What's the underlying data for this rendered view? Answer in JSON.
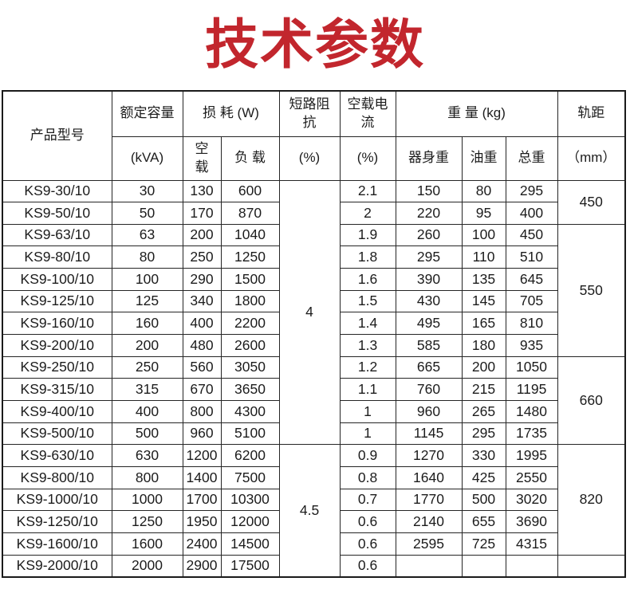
{
  "title": "技术参数",
  "theme": {
    "title_color": "#c2262d",
    "border_color": "#252525",
    "text_color": "#1c1c1c",
    "background": "#ffffff"
  },
  "table": {
    "header": {
      "product_model": "产品型号",
      "rated_capacity": "额定容量",
      "rated_capacity_unit": "(kVA)",
      "loss": "损 耗 (W)",
      "no_load_loss": "空\n载",
      "on_load_loss": "负 载",
      "impedance": "短路阻\n抗",
      "impedance_unit": "(%)",
      "no_load_current": "空载电\n流",
      "no_load_current_unit": "(%)",
      "weight": "重 量 (kg)",
      "body_weight": "器身重",
      "oil_weight": "油重",
      "total_weight": "总重",
      "rail_gauge": "轨距",
      "rail_gauge_unit": "（mm）"
    },
    "rows": [
      {
        "model": "KS9-30/10",
        "kva": "30",
        "no_load_loss": "130",
        "load_loss": "600",
        "no_load_current": "2.1",
        "body_weight": "150",
        "oil_weight": "80",
        "total_weight": "295"
      },
      {
        "model": "KS9-50/10",
        "kva": "50",
        "no_load_loss": "170",
        "load_loss": "870",
        "no_load_current": "2",
        "body_weight": "220",
        "oil_weight": "95",
        "total_weight": "400"
      },
      {
        "model": "KS9-63/10",
        "kva": "63",
        "no_load_loss": "200",
        "load_loss": "1040",
        "no_load_current": "1.9",
        "body_weight": "260",
        "oil_weight": "100",
        "total_weight": "450"
      },
      {
        "model": "KS9-80/10",
        "kva": "80",
        "no_load_loss": "250",
        "load_loss": "1250",
        "no_load_current": "1.8",
        "body_weight": "295",
        "oil_weight": "110",
        "total_weight": "510"
      },
      {
        "model": "KS9-100/10",
        "kva": "100",
        "no_load_loss": "290",
        "load_loss": "1500",
        "no_load_current": "1.6",
        "body_weight": "390",
        "oil_weight": "135",
        "total_weight": "645"
      },
      {
        "model": "KS9-125/10",
        "kva": "125",
        "no_load_loss": "340",
        "load_loss": "1800",
        "no_load_current": "1.5",
        "body_weight": "430",
        "oil_weight": "145",
        "total_weight": "705"
      },
      {
        "model": "KS9-160/10",
        "kva": "160",
        "no_load_loss": "400",
        "load_loss": "2200",
        "no_load_current": "1.4",
        "body_weight": "495",
        "oil_weight": "165",
        "total_weight": "810"
      },
      {
        "model": "KS9-200/10",
        "kva": "200",
        "no_load_loss": "480",
        "load_loss": "2600",
        "no_load_current": "1.3",
        "body_weight": "585",
        "oil_weight": "180",
        "total_weight": "935"
      },
      {
        "model": "KS9-250/10",
        "kva": "250",
        "no_load_loss": "560",
        "load_loss": "3050",
        "no_load_current": "1.2",
        "body_weight": "665",
        "oil_weight": "200",
        "total_weight": "1050"
      },
      {
        "model": "KS9-315/10",
        "kva": "315",
        "no_load_loss": "670",
        "load_loss": "3650",
        "no_load_current": "1.1",
        "body_weight": "760",
        "oil_weight": "215",
        "total_weight": "1195"
      },
      {
        "model": "KS9-400/10",
        "kva": "400",
        "no_load_loss": "800",
        "load_loss": "4300",
        "no_load_current": "1",
        "body_weight": "960",
        "oil_weight": "265",
        "total_weight": "1480"
      },
      {
        "model": "KS9-500/10",
        "kva": "500",
        "no_load_loss": "960",
        "load_loss": "5100",
        "no_load_current": "1",
        "body_weight": "1145",
        "oil_weight": "295",
        "total_weight": "1735"
      },
      {
        "model": "KS9-630/10",
        "kva": "630",
        "no_load_loss": "1200",
        "load_loss": "6200",
        "no_load_current": "0.9",
        "body_weight": "1270",
        "oil_weight": "330",
        "total_weight": "1995"
      },
      {
        "model": "KS9-800/10",
        "kva": "800",
        "no_load_loss": "1400",
        "load_loss": "7500",
        "no_load_current": "0.8",
        "body_weight": "1640",
        "oil_weight": "425",
        "total_weight": "2550"
      },
      {
        "model": "KS9-1000/10",
        "kva": "1000",
        "no_load_loss": "1700",
        "load_loss": "10300",
        "no_load_current": "0.7",
        "body_weight": "1770",
        "oil_weight": "500",
        "total_weight": "3020"
      },
      {
        "model": "KS9-1250/10",
        "kva": "1250",
        "no_load_loss": "1950",
        "load_loss": "12000",
        "no_load_current": "0.6",
        "body_weight": "2140",
        "oil_weight": "655",
        "total_weight": "3690"
      },
      {
        "model": "KS9-1600/10",
        "kva": "1600",
        "no_load_loss": "2400",
        "load_loss": "14500",
        "no_load_current": "0.6",
        "body_weight": "2595",
        "oil_weight": "725",
        "total_weight": "4315"
      },
      {
        "model": "KS9-2000/10",
        "kva": "2000",
        "no_load_loss": "2900",
        "load_loss": "17500",
        "no_load_current": "0.6",
        "body_weight": "",
        "oil_weight": "",
        "total_weight": ""
      }
    ],
    "impedance_groups": [
      {
        "span": 12,
        "value": "4"
      },
      {
        "span": 6,
        "value": "4.5"
      }
    ],
    "rail_gauge_groups": [
      {
        "span": 2,
        "value": "450"
      },
      {
        "span": 6,
        "value": "550"
      },
      {
        "span": 4,
        "value": "660"
      },
      {
        "span": 5,
        "value": "820"
      },
      {
        "span": 1,
        "value": ""
      }
    ]
  }
}
